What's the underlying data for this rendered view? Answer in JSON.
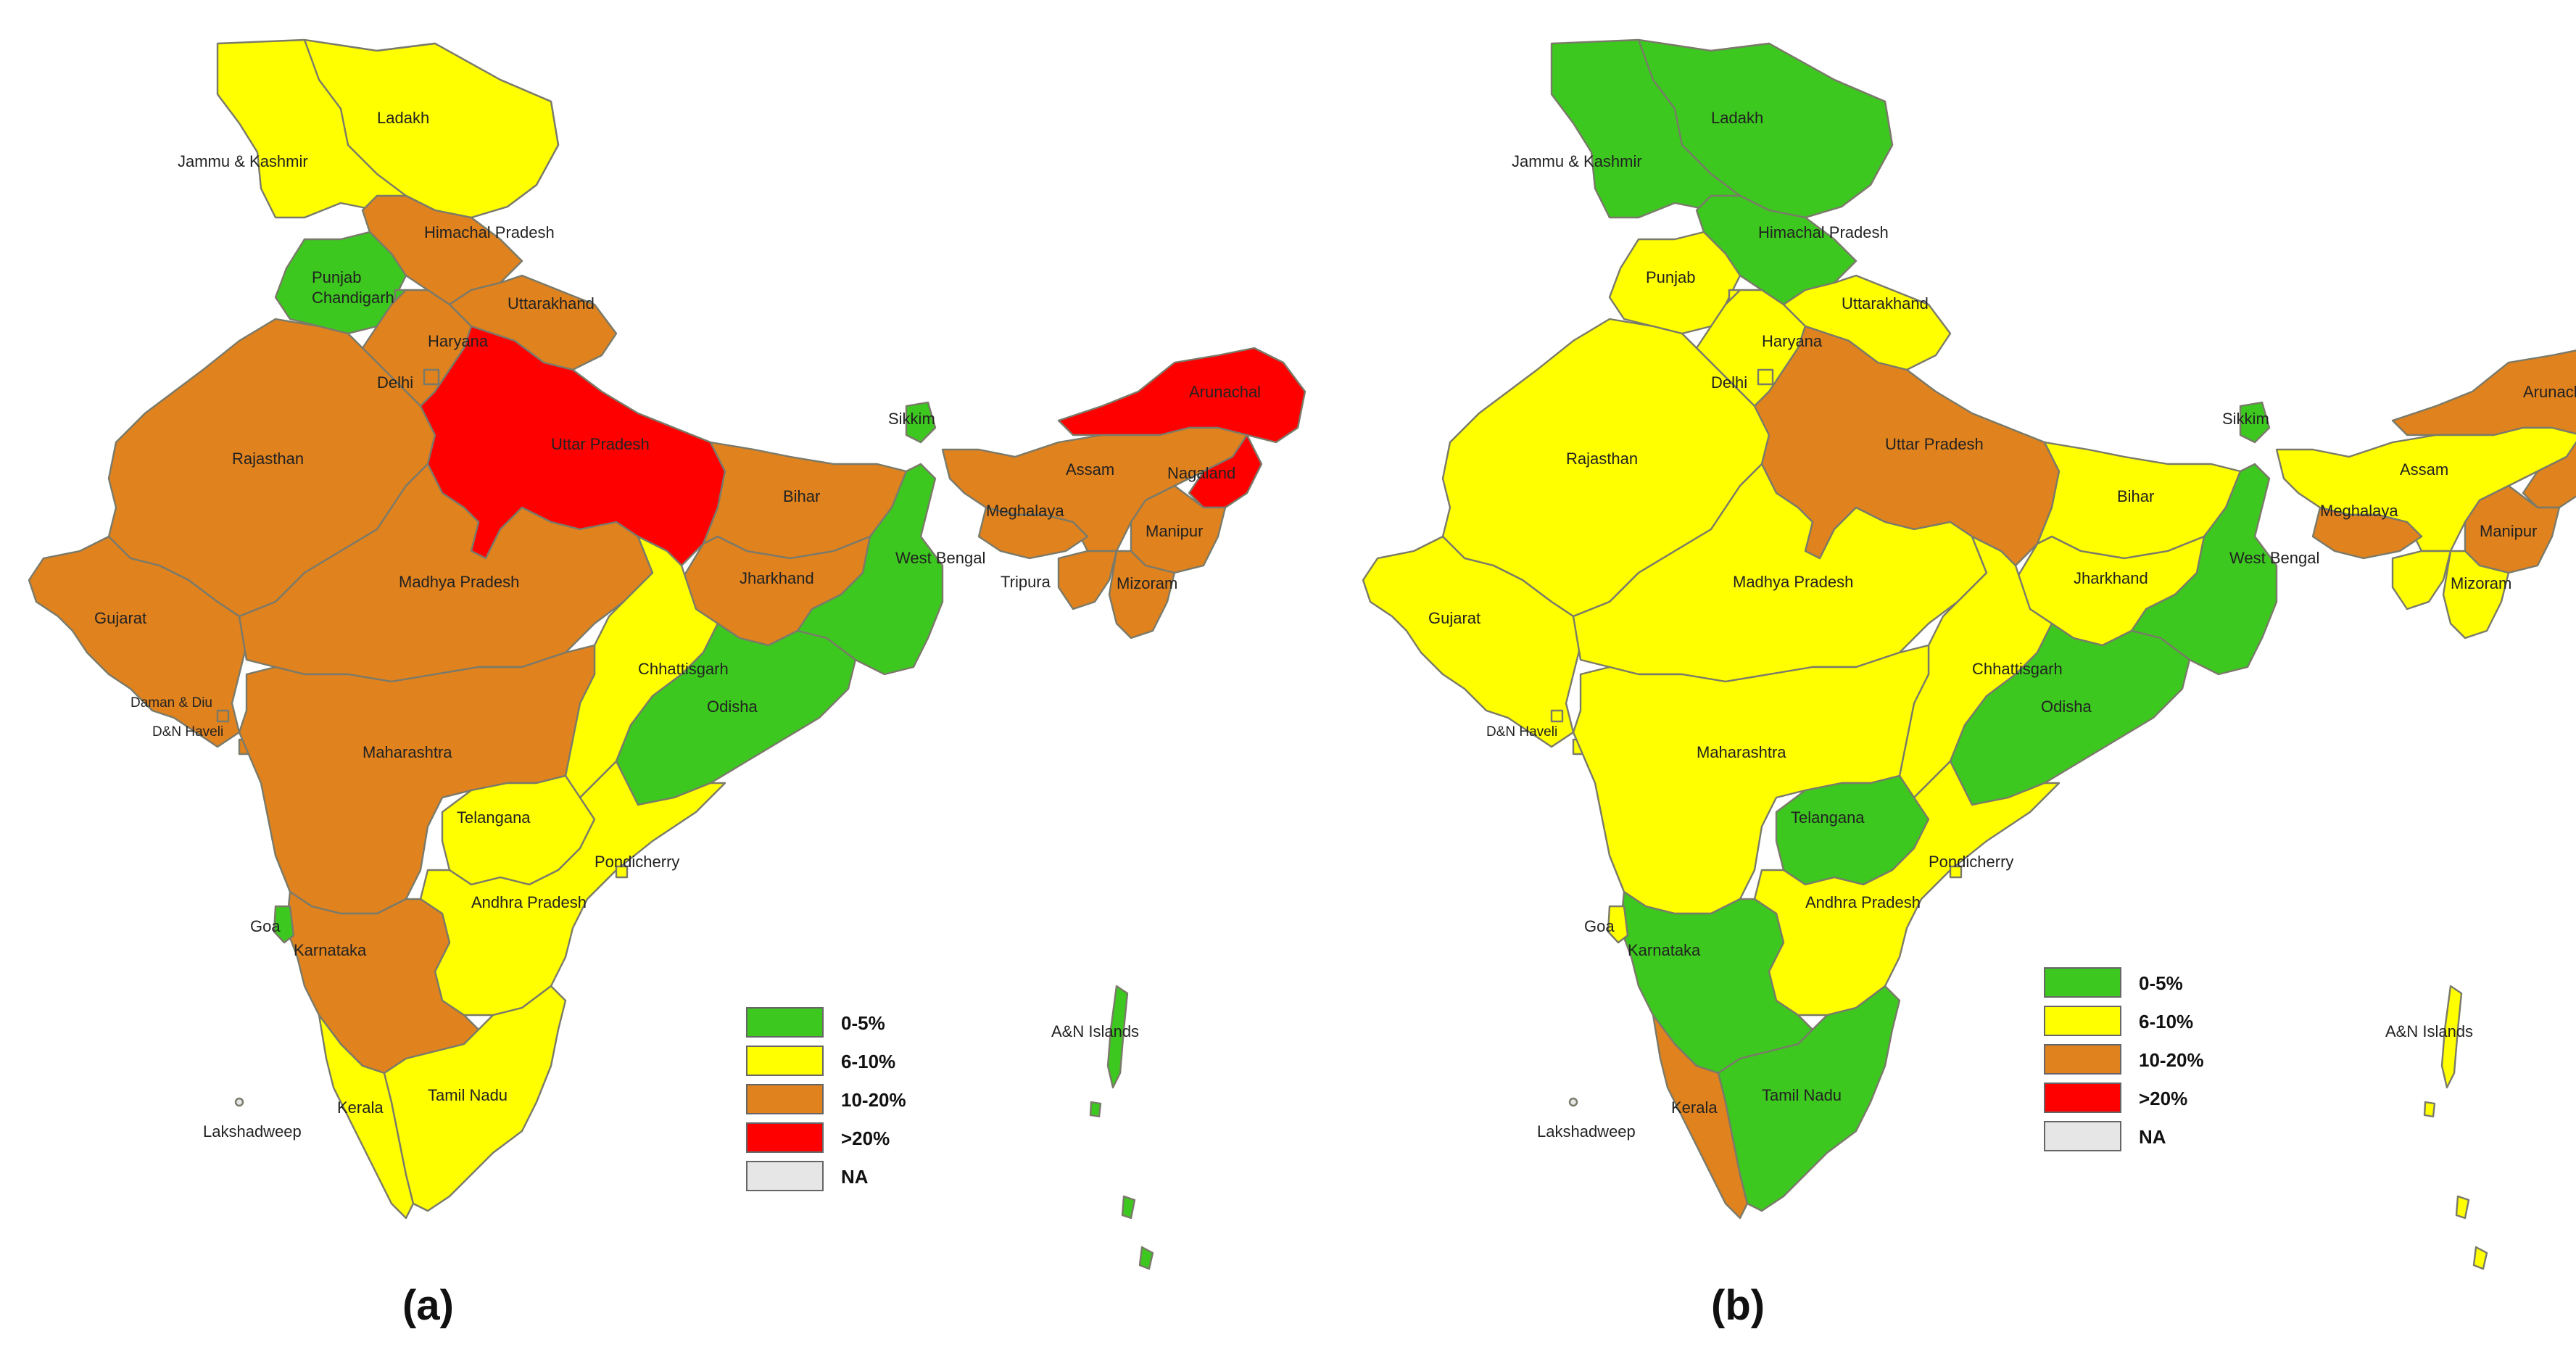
{
  "colors": {
    "c1": "#3cc81e",
    "c2": "#ffff00",
    "c3": "#e0821e",
    "c4": "#ff0000",
    "na": "#e6e6e6"
  },
  "legend": [
    {
      "key": "c1",
      "label": "0-5%"
    },
    {
      "key": "c2",
      "label": "6-10%"
    },
    {
      "key": "c3",
      "label": "10-20%"
    },
    {
      "key": "c4",
      "label": ">20%"
    },
    {
      "key": "na",
      "label": "NA"
    }
  ],
  "maps": [
    {
      "caption": "(a)",
      "regions": {
        "Ladakh": "c2",
        "Jammu & Kashmir": "c2",
        "Himachal Pradesh": "c3",
        "Punjab": "c1",
        "Chandigarh": "c1",
        "Uttarakhand": "c3",
        "Haryana": "c3",
        "Delhi": "c3",
        "Rajasthan": "c3",
        "Uttar Pradesh": "c4",
        "Gujarat": "c3",
        "Madhya Pradesh": "c3",
        "Bihar": "c3",
        "Jharkhand": "c3",
        "West Bengal": "c1",
        "Sikkim": "c1",
        "Arunachal Pradesh": "c4",
        "Assam": "c3",
        "Nagaland": "c4",
        "Meghalaya": "c3",
        "Manipur": "c3",
        "Mizoram": "c3",
        "Tripura": "c3",
        "Chhattisgarh": "c2",
        "Odisha": "c1",
        "Maharashtra": "c3",
        "Telangana": "c2",
        "Andhra Pradesh": "c2",
        "Karnataka": "c3",
        "Goa": "c1",
        "Kerala": "c2",
        "Tamil Nadu": "c2",
        "Pondicherry": "c2",
        "Lakshadweep": "na",
        "A&N Islands": "c1",
        "Daman & Diu": "c3",
        "D&N Haveli": "c3"
      },
      "labels": {
        "Ladakh": "Ladakh",
        "Jammu & Kashmir": "Jammu & Kashmir",
        "Himachal Pradesh": "Himachal Pradesh",
        "Punjab": "Punjab",
        "Chandigarh": "Chandigarh",
        "Uttarakhand": "Uttarakhand",
        "Haryana": "Haryana",
        "Delhi": "Delhi",
        "Rajasthan": "Rajasthan",
        "Uttar Pradesh": "Uttar Pradesh",
        "Gujarat": "Gujarat",
        "Madhya Pradesh": "Madhya Pradesh",
        "Bihar": "Bihar",
        "Jharkhand": "Jharkhand",
        "West Bengal": "West Bengal",
        "Sikkim": "Sikkim",
        "Arunachal Pradesh": "Arunachal",
        "Assam": "Assam",
        "Nagaland": "Nagaland",
        "Meghalaya": "Meghalaya",
        "Manipur": "Manipur",
        "Mizoram": "Mizoram",
        "Tripura": "Tripura",
        "Chhattisgarh": "Chhattisgarh",
        "Odisha": "Odisha",
        "Maharashtra": "Maharashtra",
        "Telangana": "Telangana",
        "Andhra Pradesh": "Andhra Pradesh",
        "Karnataka": "Karnataka",
        "Goa": "Goa",
        "Kerala": "Kerala",
        "Tamil Nadu": "Tamil Nadu",
        "Pondicherry": "Pondicherry",
        "Lakshadweep": "Lakshadweep",
        "A&N Islands": "A&N Islands",
        "Daman & Diu": "Daman & Diu",
        "D&N Haveli": "D&N Haveli"
      }
    },
    {
      "caption": "(b)",
      "regions": {
        "Ladakh": "c1",
        "Jammu & Kashmir": "c1",
        "Himachal Pradesh": "c1",
        "Punjab": "c2",
        "Chandigarh": "c2",
        "Uttarakhand": "c2",
        "Haryana": "c2",
        "Delhi": "c2",
        "Rajasthan": "c2",
        "Uttar Pradesh": "c3",
        "Gujarat": "c2",
        "Madhya Pradesh": "c2",
        "Bihar": "c2",
        "Jharkhand": "c2",
        "West Bengal": "c1",
        "Sikkim": "c1",
        "Arunachal Pradesh": "c3",
        "Assam": "c2",
        "Nagaland": "c3",
        "Meghalaya": "c3",
        "Manipur": "c3",
        "Mizoram": "c2",
        "Tripura": "c2",
        "Chhattisgarh": "c2",
        "Odisha": "c1",
        "Maharashtra": "c2",
        "Telangana": "c1",
        "Andhra Pradesh": "c2",
        "Karnataka": "c1",
        "Goa": "c2",
        "Kerala": "c3",
        "Tamil Nadu": "c1",
        "Pondicherry": "c2",
        "Lakshadweep": "na",
        "A&N Islands": "c2",
        "Daman & Diu": "c2",
        "D&N Haveli": "c2"
      },
      "labels": {
        "Ladakh": "Ladakh",
        "Jammu & Kashmir": "Jammu & Kashmir",
        "Himachal Pradesh": "Himachal Pradesh",
        "Punjab": "Punjab",
        "Uttarakhand": "Uttarakhand",
        "Haryana": "Haryana",
        "Delhi": "Delhi",
        "Rajasthan": "Rajasthan",
        "Uttar Pradesh": "Uttar Pradesh",
        "Gujarat": "Gujarat",
        "Madhya Pradesh": "Madhya Pradesh",
        "Bihar": "Bihar",
        "Jharkhand": "Jharkhand",
        "West Bengal": "West Bengal",
        "Sikkim": "Sikkim",
        "Arunachal Pradesh": "Arunachal Pr",
        "Assam": "Assam",
        "Meghalaya": "Meghalaya",
        "Manipur": "Manipur",
        "Mizoram": "Mizoram",
        "Chhattisgarh": "Chhattisgarh",
        "Odisha": "Odisha",
        "Maharashtra": "Maharashtra",
        "Telangana": "Telangana",
        "Andhra Pradesh": "Andhra Pradesh",
        "Karnataka": "Karnataka",
        "Goa": "Goa",
        "Kerala": "Kerala",
        "Tamil Nadu": "Tamil Nadu",
        "Pondicherry": "Pondicherry",
        "Lakshadweep": "Lakshadweep",
        "A&N Islands": "A&N Islands",
        "D&N Haveli": "D&N Haveli"
      }
    }
  ]
}
